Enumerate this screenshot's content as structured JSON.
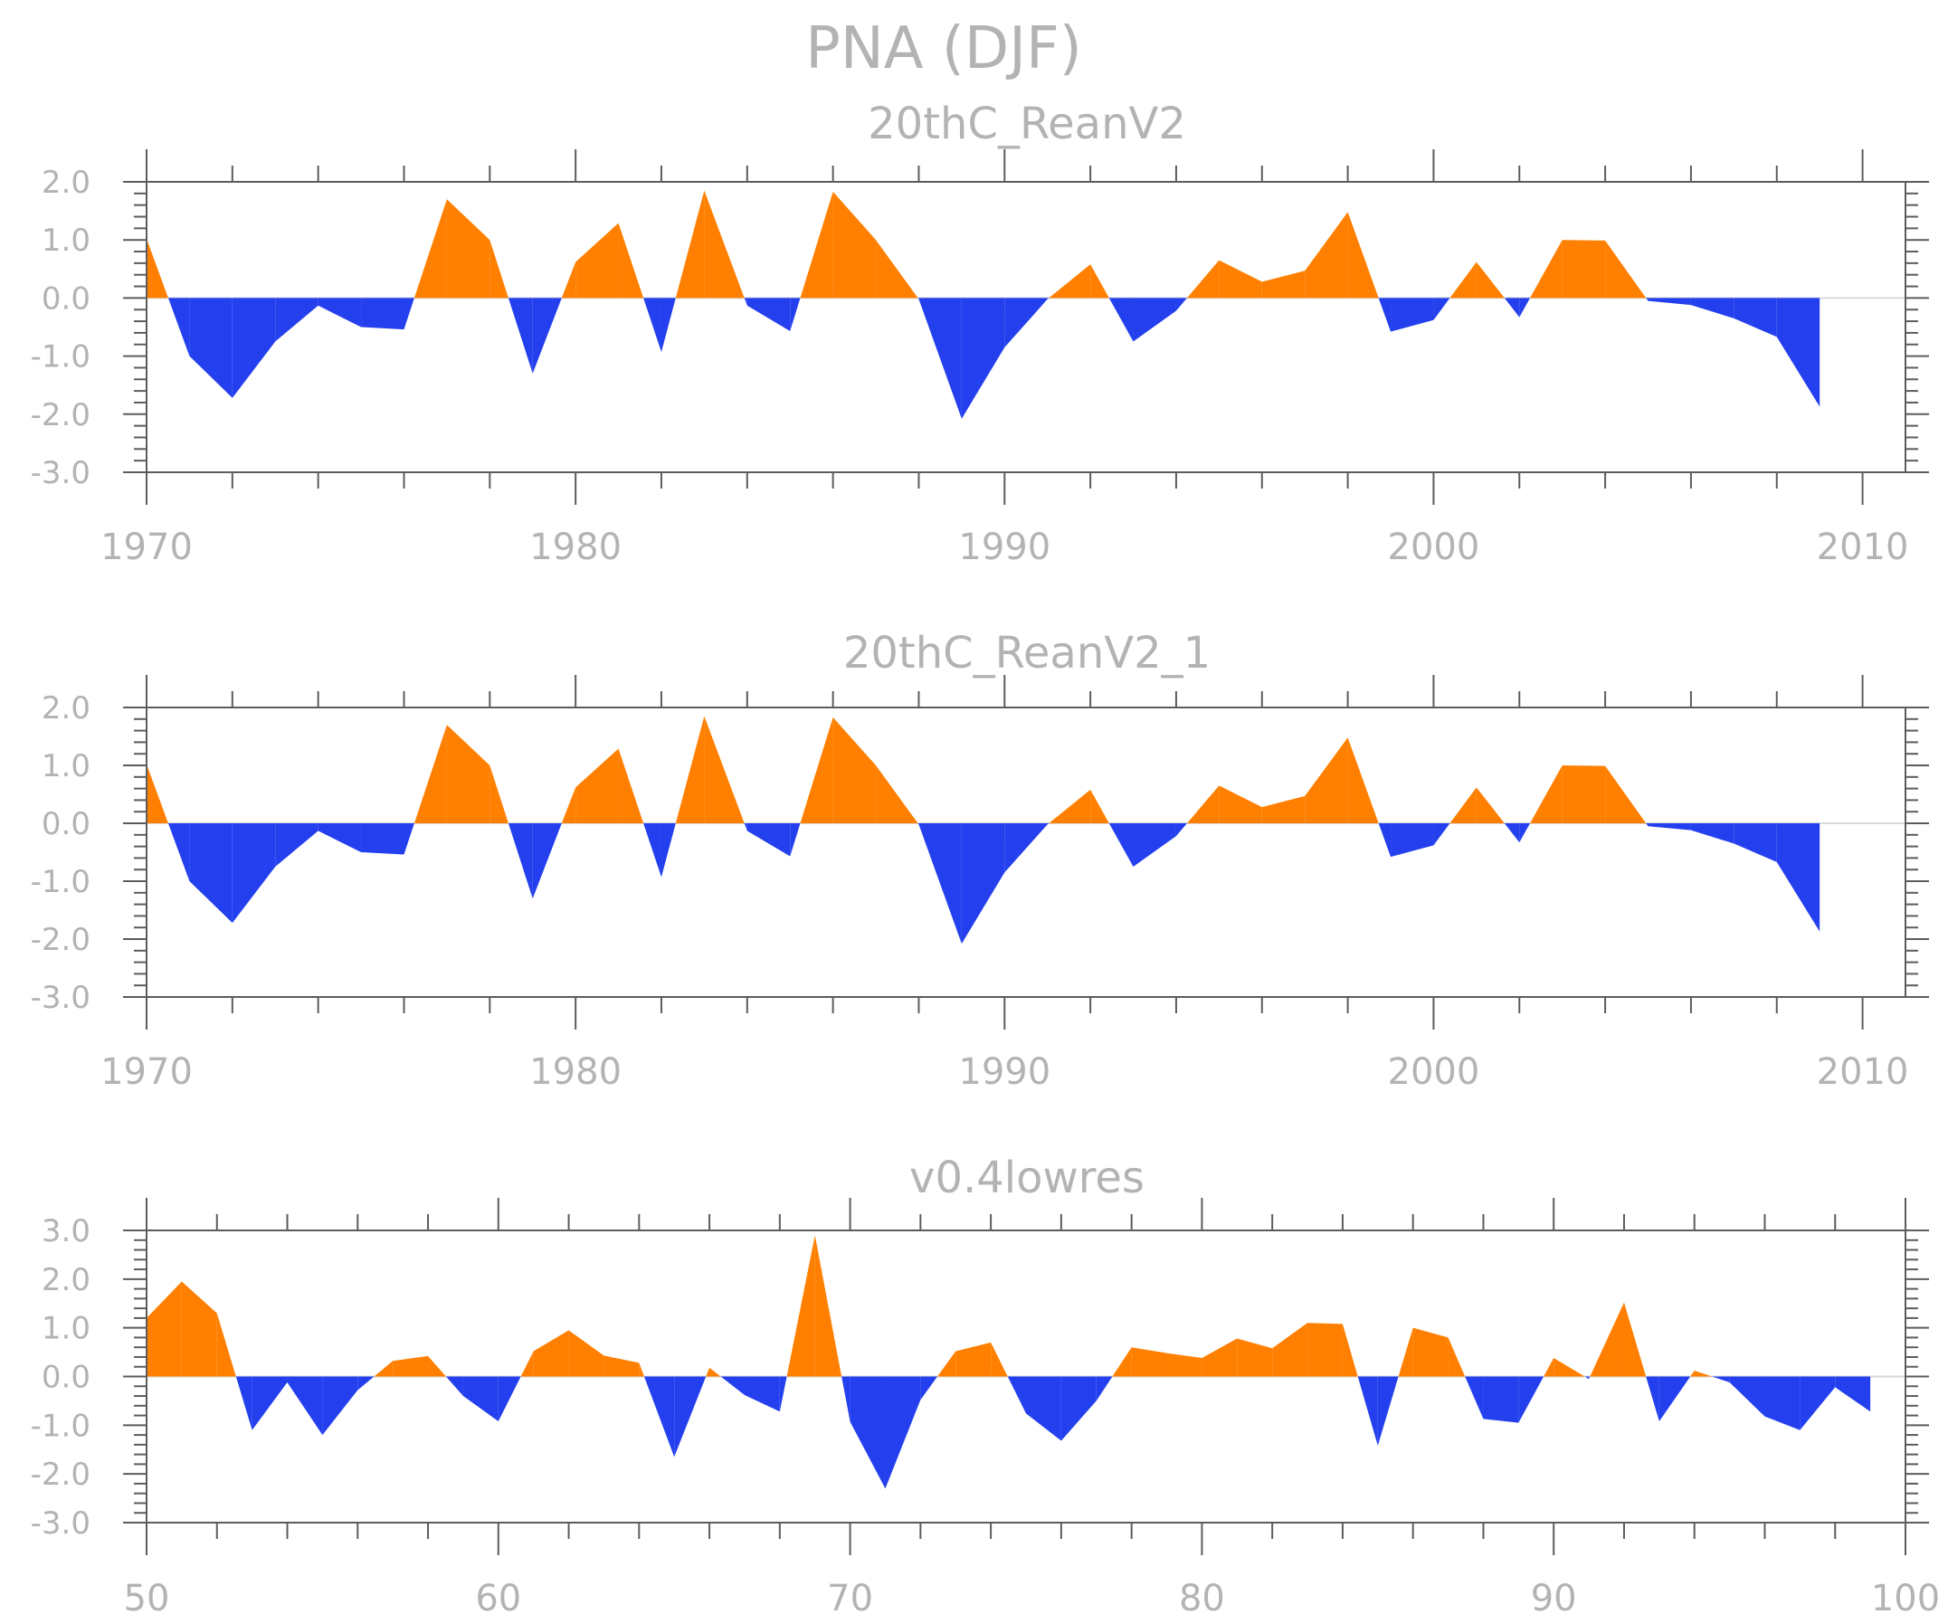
{
  "colors": {
    "positive": "#ff8000",
    "negative": "#2440ee",
    "frame": "#5c5c5c",
    "zero": "#d9d9d9",
    "text": "#b3b3b3"
  },
  "title": "PNA (DJF)",
  "chart_data": [
    {
      "type": "area",
      "subtitle": "20thC_ReanV2",
      "x": [
        1970,
        1971,
        1972,
        1973,
        1974,
        1975,
        1976,
        1977,
        1978,
        1979,
        1980,
        1981,
        1982,
        1983,
        1984,
        1985,
        1986,
        1987,
        1988,
        1989,
        1990,
        1991,
        1992,
        1993,
        1994,
        1995,
        1996,
        1997,
        1998,
        1999,
        2000,
        2001,
        2002,
        2003,
        2004,
        2005,
        2006,
        2007,
        2008,
        2009
      ],
      "values": [
        1.02,
        -1.0,
        -1.72,
        -0.75,
        -0.13,
        -0.5,
        -0.54,
        1.7,
        1.0,
        -1.3,
        0.62,
        1.29,
        -0.93,
        1.85,
        -0.13,
        -0.57,
        1.83,
        1.0,
        -0.02,
        -2.08,
        -0.85,
        -0.02,
        0.58,
        -0.75,
        -0.22,
        0.65,
        0.28,
        0.47,
        1.48,
        -0.58,
        -0.38,
        0.62,
        -0.33,
        1.0,
        0.99,
        -0.05,
        -0.12,
        -0.35,
        -0.67,
        -1.87
      ],
      "xlim": [
        1970,
        2011
      ],
      "ylim": [
        -3.0,
        2.0
      ],
      "yticks": [
        "2.0",
        "1.0",
        "0.0",
        "-1.0",
        "-2.0",
        "-3.0"
      ],
      "xticks": [
        "1970",
        "1980",
        "1990",
        "2000",
        "2010"
      ]
    },
    {
      "type": "area",
      "subtitle": "20thC_ReanV2_1",
      "x": [
        1970,
        1971,
        1972,
        1973,
        1974,
        1975,
        1976,
        1977,
        1978,
        1979,
        1980,
        1981,
        1982,
        1983,
        1984,
        1985,
        1986,
        1987,
        1988,
        1989,
        1990,
        1991,
        1992,
        1993,
        1994,
        1995,
        1996,
        1997,
        1998,
        1999,
        2000,
        2001,
        2002,
        2003,
        2004,
        2005,
        2006,
        2007,
        2008,
        2009
      ],
      "values": [
        1.02,
        -1.0,
        -1.72,
        -0.75,
        -0.13,
        -0.5,
        -0.54,
        1.7,
        1.0,
        -1.3,
        0.62,
        1.29,
        -0.93,
        1.85,
        -0.13,
        -0.57,
        1.83,
        1.0,
        -0.02,
        -2.08,
        -0.85,
        -0.02,
        0.58,
        -0.75,
        -0.22,
        0.65,
        0.28,
        0.47,
        1.48,
        -0.58,
        -0.38,
        0.62,
        -0.33,
        1.0,
        0.99,
        -0.05,
        -0.12,
        -0.35,
        -0.67,
        -1.87
      ],
      "xlim": [
        1970,
        2011
      ],
      "ylim": [
        -3.0,
        2.0
      ],
      "yticks": [
        "2.0",
        "1.0",
        "0.0",
        "-1.0",
        "-2.0",
        "-3.0"
      ],
      "xticks": [
        "1970",
        "1980",
        "1990",
        "2000",
        "2010"
      ]
    },
    {
      "type": "area",
      "subtitle": "v0.4lowres",
      "x": [
        50,
        51,
        52,
        53,
        54,
        55,
        56,
        57,
        58,
        59,
        60,
        61,
        62,
        63,
        64,
        65,
        66,
        67,
        68,
        69,
        70,
        71,
        72,
        73,
        74,
        75,
        76,
        77,
        78,
        79,
        80,
        81,
        82,
        83,
        84,
        85,
        86,
        87,
        88,
        89,
        90,
        91,
        92,
        93,
        94,
        95,
        96,
        97,
        98,
        99
      ],
      "values": [
        1.2,
        1.95,
        1.3,
        -1.1,
        -0.12,
        -1.2,
        -0.28,
        0.32,
        0.42,
        -0.4,
        -0.92,
        0.52,
        0.95,
        0.43,
        0.28,
        -1.65,
        0.18,
        -0.38,
        -0.72,
        2.9,
        -0.93,
        -2.3,
        -0.48,
        0.52,
        0.7,
        -0.76,
        -1.32,
        -0.5,
        0.6,
        0.48,
        0.38,
        0.78,
        0.58,
        1.1,
        1.08,
        -1.42,
        1.0,
        0.8,
        -0.87,
        -0.95,
        0.38,
        -0.05,
        1.52,
        -0.92,
        0.12,
        -0.12,
        -0.82,
        -1.1,
        -0.22,
        -0.72
      ],
      "xlim": [
        50,
        100
      ],
      "ylim": [
        -3.0,
        3.0
      ],
      "yticks": [
        "3.0",
        "2.0",
        "1.0",
        "0.0",
        "-1.0",
        "-2.0",
        "-3.0"
      ],
      "xticks": [
        "50",
        "60",
        "70",
        "80",
        "90",
        "100"
      ]
    }
  ]
}
